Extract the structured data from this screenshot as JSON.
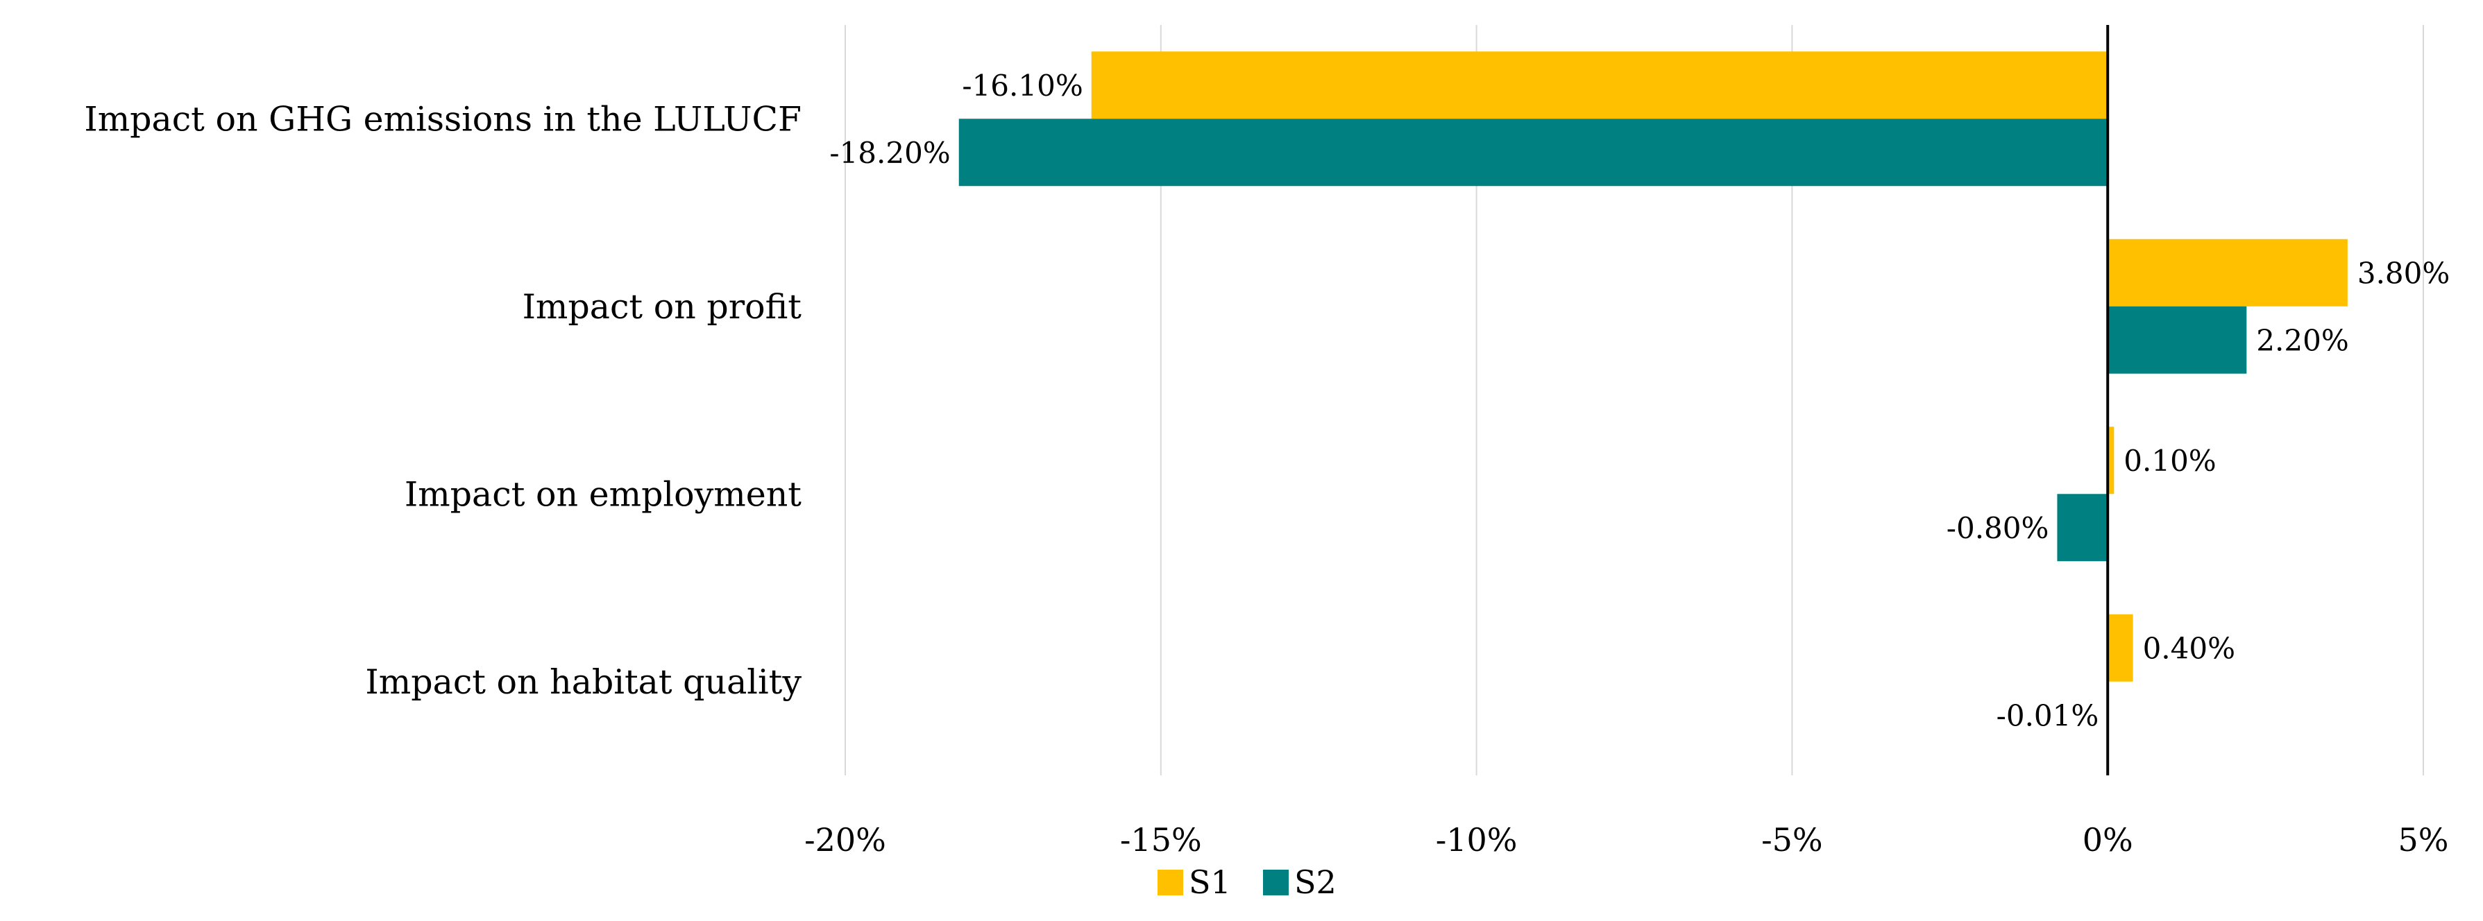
{
  "chart_data": {
    "type": "bar",
    "orientation": "horizontal",
    "categories": [
      "Impact on GHG emissions in the LULUCF",
      "Impact on profit",
      "Impact on employment",
      "Impact on habitat quality"
    ],
    "series": [
      {
        "name": "S1",
        "color": "#FFC000",
        "values": [
          -16.1,
          3.8,
          0.1,
          0.4
        ],
        "labels": [
          "-16.10%",
          "3.80%",
          "0.10%",
          "0.40%"
        ]
      },
      {
        "name": "S2",
        "color": "#008080",
        "values": [
          -18.2,
          2.2,
          -0.8,
          -0.01
        ],
        "labels": [
          "-18.20%",
          "2.20%",
          "-0.80%",
          "-0.01%"
        ]
      }
    ],
    "xlim": [
      -20,
      5
    ],
    "xticks": [
      -20,
      -15,
      -10,
      -5,
      0,
      5
    ],
    "xtick_labels": [
      "-20%",
      "-15%",
      "-10%",
      "-5%",
      "0%",
      "5%"
    ],
    "grid": "vertical",
    "legend": "bottom-center",
    "title": "",
    "xlabel": "",
    "ylabel": ""
  }
}
